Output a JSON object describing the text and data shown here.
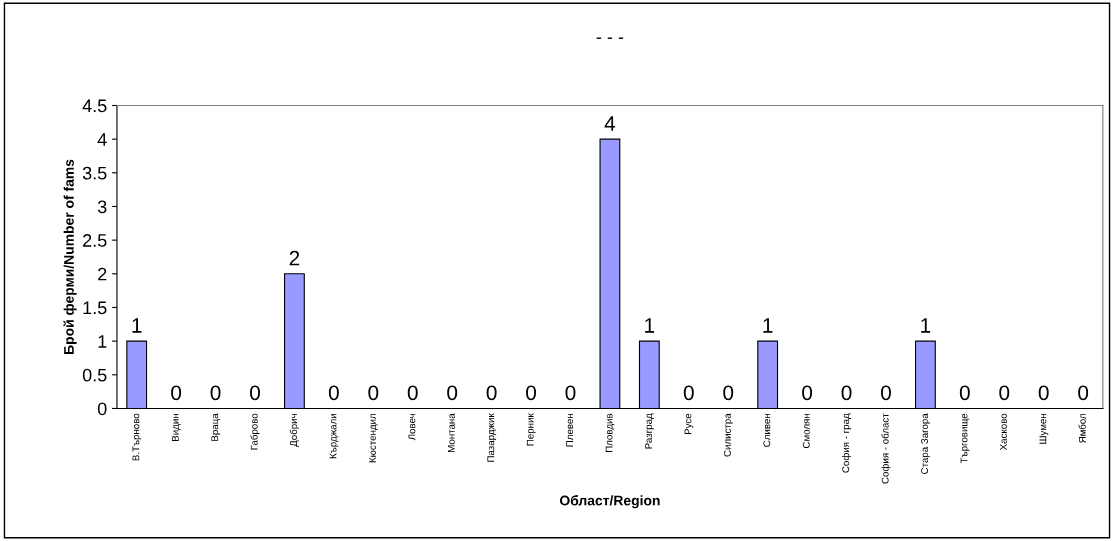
{
  "chart_data": {
    "type": "bar",
    "title": "- - -",
    "xlabel": "Област/Region",
    "ylabel": "Брой ферми/Number of fams",
    "categories": [
      "В.Търново",
      "Видин",
      "Враца",
      "Габрово",
      "Добрич",
      "Кърджали",
      "Кюстендил",
      "Ловеч",
      "Монтана",
      "Пазарджик",
      "Перник",
      "Плевен",
      "Пловдив",
      "Разград",
      "Русе",
      "Силистра",
      "Сливен",
      "Смолян",
      "София - град",
      "София - област",
      "Стара Загора",
      "Търговище",
      "Хасково",
      "Шумен",
      "Ямбол"
    ],
    "values": [
      1,
      0,
      0,
      0,
      2,
      0,
      0,
      0,
      0,
      0,
      0,
      0,
      4,
      1,
      0,
      0,
      1,
      0,
      0,
      0,
      1,
      0,
      0,
      0,
      0
    ],
    "color": "#9999ff",
    "ylim": [
      0,
      4.5
    ],
    "yticks": [
      0,
      0.5,
      1,
      1.5,
      2,
      2.5,
      3,
      3.5,
      4,
      4.5
    ],
    "data_labels": true,
    "grid": false,
    "legend": false
  }
}
